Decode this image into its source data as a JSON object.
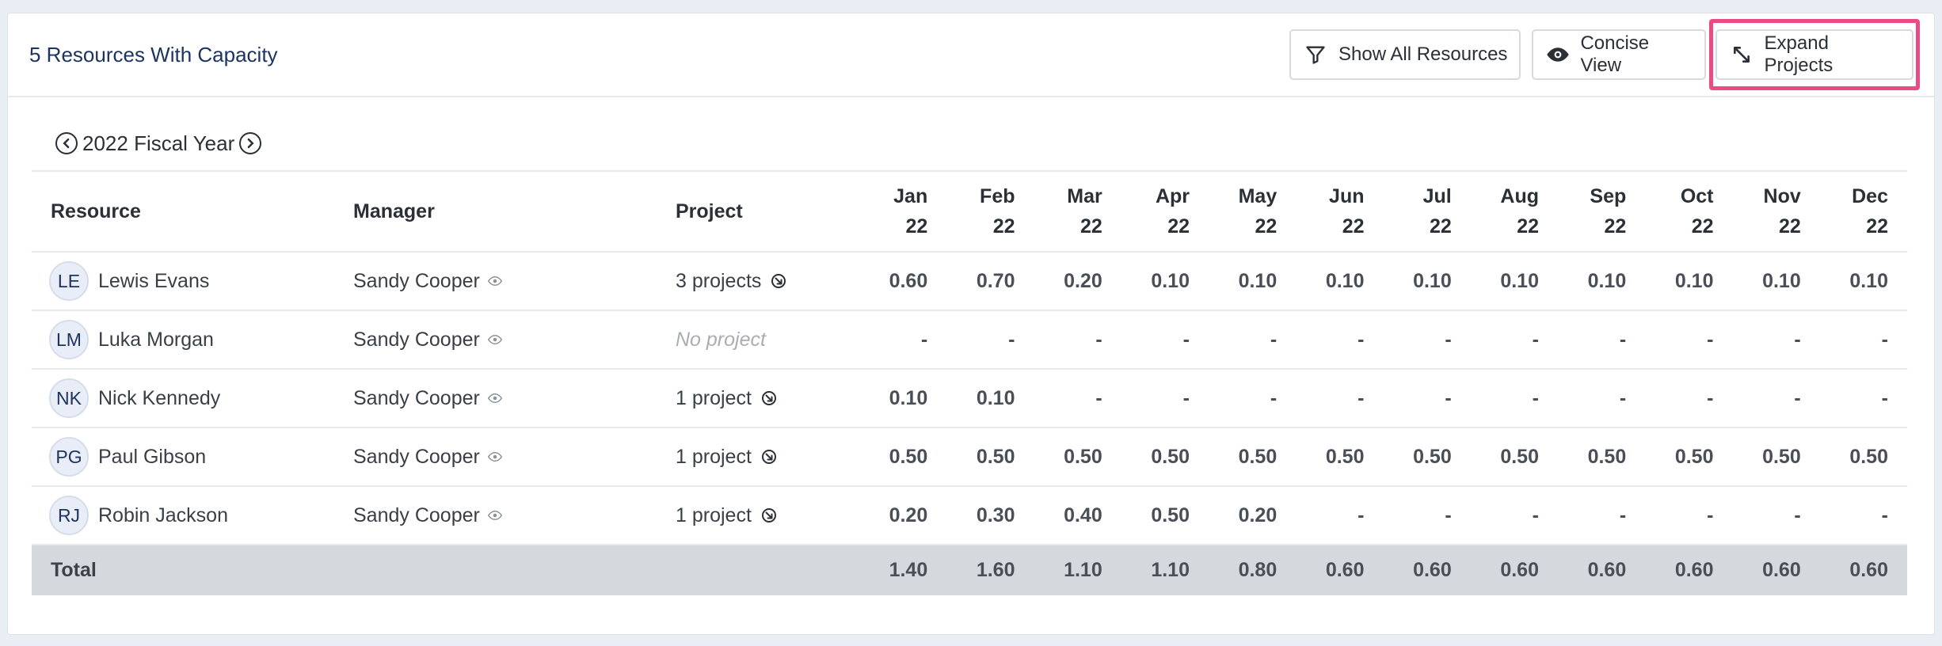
{
  "header": {
    "title": "5 Resources With Capacity",
    "buttons": {
      "show_all": "Show All Resources",
      "concise": "Concise View",
      "expand": "Expand Projects"
    }
  },
  "year_nav": {
    "label": "2022 Fiscal Year"
  },
  "columns": {
    "resource": "Resource",
    "manager": "Manager",
    "project": "Project",
    "months": [
      {
        "m": "Jan",
        "y": "22"
      },
      {
        "m": "Feb",
        "y": "22"
      },
      {
        "m": "Mar",
        "y": "22"
      },
      {
        "m": "Apr",
        "y": "22"
      },
      {
        "m": "May",
        "y": "22"
      },
      {
        "m": "Jun",
        "y": "22"
      },
      {
        "m": "Jul",
        "y": "22"
      },
      {
        "m": "Aug",
        "y": "22"
      },
      {
        "m": "Sep",
        "y": "22"
      },
      {
        "m": "Oct",
        "y": "22"
      },
      {
        "m": "Nov",
        "y": "22"
      },
      {
        "m": "Dec",
        "y": "22"
      }
    ]
  },
  "rows": [
    {
      "initials": "LE",
      "name": "Lewis Evans",
      "manager": "Sandy Cooper",
      "project": "3 projects",
      "has_project": true,
      "values": [
        "0.60",
        "0.70",
        "0.20",
        "0.10",
        "0.10",
        "0.10",
        "0.10",
        "0.10",
        "0.10",
        "0.10",
        "0.10",
        "0.10"
      ]
    },
    {
      "initials": "LM",
      "name": "Luka Morgan",
      "manager": "Sandy Cooper",
      "project": "No project",
      "has_project": false,
      "values": [
        "-",
        "-",
        "-",
        "-",
        "-",
        "-",
        "-",
        "-",
        "-",
        "-",
        "-",
        "-"
      ]
    },
    {
      "initials": "NK",
      "name": "Nick Kennedy",
      "manager": "Sandy Cooper",
      "project": "1 project",
      "has_project": true,
      "values": [
        "0.10",
        "0.10",
        "-",
        "-",
        "-",
        "-",
        "-",
        "-",
        "-",
        "-",
        "-",
        "-"
      ]
    },
    {
      "initials": "PG",
      "name": "Paul Gibson",
      "manager": "Sandy Cooper",
      "project": "1 project",
      "has_project": true,
      "values": [
        "0.50",
        "0.50",
        "0.50",
        "0.50",
        "0.50",
        "0.50",
        "0.50",
        "0.50",
        "0.50",
        "0.50",
        "0.50",
        "0.50"
      ]
    },
    {
      "initials": "RJ",
      "name": "Robin Jackson",
      "manager": "Sandy Cooper",
      "project": "1 project",
      "has_project": true,
      "values": [
        "0.20",
        "0.30",
        "0.40",
        "0.50",
        "0.20",
        "-",
        "-",
        "-",
        "-",
        "-",
        "-",
        "-"
      ]
    }
  ],
  "totals": {
    "label": "Total",
    "values": [
      "1.40",
      "1.60",
      "1.10",
      "1.10",
      "0.80",
      "0.60",
      "0.60",
      "0.60",
      "0.60",
      "0.60",
      "0.60",
      "0.60"
    ]
  },
  "colors": {
    "highlight": "#ec4a82",
    "title": "#1d3460",
    "total_row": "#d5d8dd"
  },
  "icons": {
    "show_all": "filter-icon",
    "concise": "eye-icon",
    "expand": "expand-arrows-icon",
    "prev": "chevron-left-circle-icon",
    "next": "chevron-right-circle-icon",
    "manager": "eye-icon",
    "project": "arrow-down-right-circle-icon"
  }
}
